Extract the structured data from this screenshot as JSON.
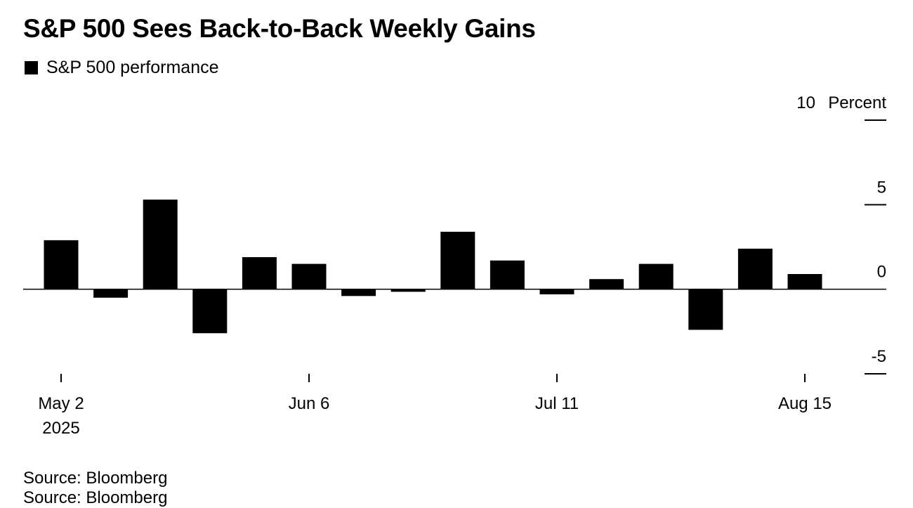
{
  "title": "S&P 500 Sees Back-to-Back Weekly Gains",
  "legend": {
    "label": "S&P 500 performance"
  },
  "source_lines": [
    "Source: Bloomberg",
    "Source: Bloomberg"
  ],
  "colors": {
    "bar": "#000000",
    "axis": "#000000",
    "background": "#ffffff"
  },
  "chart_data": {
    "type": "bar",
    "title": "S&P 500 Sees Back-to-Back Weekly Gains",
    "ylabel": "Percent",
    "ylim": [
      -5,
      10
    ],
    "y_ticks": [
      10,
      5,
      0,
      -5
    ],
    "grid": false,
    "legend_position": "top-left",
    "x_tick_labels": [
      {
        "category": "2025-05-02",
        "lines": [
          "May 2",
          "2025"
        ]
      },
      {
        "category": "2025-06-06",
        "lines": [
          "Jun 6"
        ]
      },
      {
        "category": "2025-07-11",
        "lines": [
          "Jul 11"
        ]
      },
      {
        "category": "2025-08-15",
        "lines": [
          "Aug 15"
        ]
      }
    ],
    "categories": [
      "2025-05-02",
      "2025-05-09",
      "2025-05-16",
      "2025-05-23",
      "2025-05-30",
      "2025-06-06",
      "2025-06-13",
      "2025-06-20",
      "2025-06-27",
      "2025-07-04",
      "2025-07-11",
      "2025-07-18",
      "2025-07-25",
      "2025-08-01",
      "2025-08-08",
      "2025-08-15"
    ],
    "series": [
      {
        "name": "S&P 500 performance",
        "values": [
          2.9,
          -0.5,
          5.3,
          -2.6,
          1.9,
          1.5,
          -0.4,
          -0.15,
          3.4,
          1.7,
          -0.3,
          0.6,
          1.5,
          -2.4,
          2.4,
          0.9
        ]
      }
    ]
  }
}
